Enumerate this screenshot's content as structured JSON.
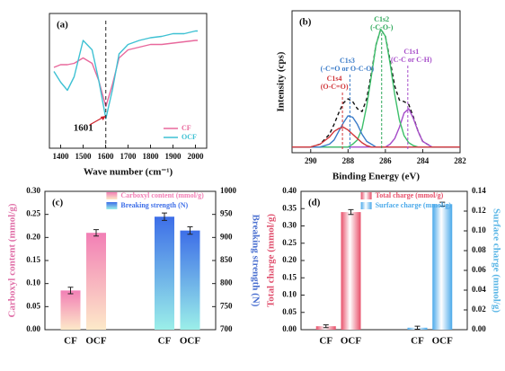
{
  "chart_data": [
    {
      "type": "line",
      "panel_label": "(a)",
      "xlabel": "Wave number (cm⁻¹)",
      "x": [
        1370,
        1400,
        1430,
        1460,
        1500,
        1540,
        1570,
        1601,
        1630,
        1660,
        1700,
        1750,
        1800,
        1850,
        1900,
        1950,
        2000,
        2010
      ],
      "xlim": [
        1350,
        2050
      ],
      "xticks": [
        1400,
        1500,
        1600,
        1700,
        1800,
        1900,
        2000
      ],
      "ylim": [
        0,
        100
      ],
      "legend": "lower right",
      "series": [
        {
          "name": "CF",
          "color": "#e8689c",
          "values": [
            60,
            62,
            62,
            63,
            67,
            63,
            50,
            31,
            47,
            67,
            73,
            75,
            77,
            77,
            78,
            79,
            80,
            80
          ]
        },
        {
          "name": "OCF",
          "color": "#3ec1d3",
          "values": [
            57,
            49,
            43,
            53,
            80,
            73,
            50,
            22,
            43,
            70,
            77,
            80,
            82,
            83,
            85,
            85,
            87,
            87
          ]
        }
      ],
      "annotations": [
        {
          "text": "1601",
          "x": 1601
        }
      ]
    },
    {
      "type": "line",
      "panel_label": "(b)",
      "xlabel": "Binding Energy (eV)",
      "ylabel": "Intensity (cps)",
      "x": [
        291,
        290.5,
        290,
        289.5,
        289,
        288.75,
        288.5,
        288.25,
        288,
        287.75,
        287.5,
        287.25,
        287,
        286.75,
        286.5,
        286.25,
        286,
        285.75,
        285.5,
        285.25,
        285,
        284.75,
        284.5,
        284.25,
        284,
        283.5,
        283,
        282.5,
        282
      ],
      "xlim": [
        291,
        282
      ],
      "xticks": [
        290,
        288,
        286,
        284,
        282
      ],
      "ylim": [
        0,
        100
      ],
      "series": [
        {
          "color": "#111111",
          "style": "dashed",
          "values": [
            4,
            4,
            4,
            6,
            13,
            20,
            28,
            35,
            38,
            36,
            31,
            29,
            38,
            56,
            76,
            87,
            82,
            65,
            47,
            37,
            36,
            34,
            25,
            15,
            8,
            4,
            4,
            4,
            4
          ]
        },
        {
          "color": "#a64cc9",
          "values": [
            4,
            4,
            4,
            4,
            4,
            4,
            4,
            4,
            4,
            4,
            4,
            4,
            4,
            4,
            4,
            4,
            4,
            6,
            10,
            18,
            28,
            31,
            24,
            15,
            8,
            4,
            4,
            4,
            4
          ]
        },
        {
          "color": "#3dbf6a",
          "values": [
            4,
            4,
            4,
            4,
            4,
            4,
            4,
            4,
            4,
            6,
            9,
            17,
            33,
            54,
            76,
            87,
            82,
            63,
            41,
            23,
            12,
            7,
            5,
            4,
            4,
            4,
            4,
            4,
            4
          ]
        },
        {
          "color": "#3a7bc8",
          "values": [
            4,
            4,
            4,
            4,
            6,
            9,
            15,
            21,
            26,
            25,
            20,
            13,
            8,
            6,
            4,
            4,
            4,
            4,
            4,
            4,
            4,
            4,
            4,
            4,
            4,
            4,
            4,
            4,
            4
          ]
        },
        {
          "color": "#d0363a",
          "values": [
            4,
            4,
            4,
            6,
            11,
            15,
            17,
            18,
            16,
            13,
            10,
            7,
            5,
            4,
            4,
            4,
            4,
            4,
            4,
            4,
            4,
            4,
            4,
            4,
            4,
            4,
            4,
            4,
            4
          ]
        }
      ],
      "annotations": [
        {
          "lines": [
            "C1s2",
            "(-C-O-)"
          ],
          "x": 286.2,
          "color": "#2ea85a"
        },
        {
          "lines": [
            "C1s1",
            "(C-C or C-H)"
          ],
          "x": 284.8,
          "color": "#a64cc9"
        },
        {
          "lines": [
            "C1s3",
            "(-C=O or O-C-O)"
          ],
          "x": 287.9,
          "color": "#3a7bc8"
        },
        {
          "lines": [
            "C1s4",
            "(O-C=O)"
          ],
          "x": 288.3,
          "color": "#d0363a"
        }
      ]
    },
    {
      "type": "bar",
      "panel_label": "(c)",
      "ylabel": "Carboxyl content (mmol/g)",
      "y2label": "Breaking strength (N)",
      "categories": [
        "CF",
        "OCF",
        "CF",
        "OCF"
      ],
      "ylim": [
        0,
        0.3
      ],
      "yticks": [
        {
          "value": 0,
          "label": "0.00"
        },
        0.05,
        {
          "value": 0.1,
          "label": "0.10"
        },
        0.15,
        {
          "value": 0.2,
          "label": "0.20"
        },
        0.25,
        {
          "value": 0.3,
          "label": "0.30"
        }
      ],
      "y2lim": [
        700,
        1000
      ],
      "y2ticks": [
        700,
        750,
        800,
        850,
        900,
        950,
        1000
      ],
      "series": [
        {
          "name": "Carboxyl content (mmol/g)",
          "color": "#f27fb5",
          "values": [
            0.085,
            0.21,
            null,
            null
          ],
          "errors": [
            0.007,
            0.007,
            null,
            null
          ]
        },
        {
          "name": "Breaking strength (N)",
          "color": "#3d6ee8",
          "axis": "y2",
          "values": [
            null,
            null,
            945,
            915
          ],
          "errors": [
            null,
            null,
            8,
            8
          ]
        }
      ]
    },
    {
      "type": "bar",
      "panel_label": "(d)",
      "ylabel": "Total charge (mmol/g)",
      "y2label": "Surface charge (mmol/g)",
      "categories": [
        "CF",
        "OCF",
        "CF",
        "OCF"
      ],
      "ylim": [
        0,
        0.4
      ],
      "yticks": [
        {
          "value": 0,
          "label": "0.00"
        },
        0.05,
        {
          "value": 0.1,
          "label": "0.10"
        },
        0.15,
        {
          "value": 0.2,
          "label": "0.20"
        },
        0.25,
        {
          "value": 0.3,
          "label": "0.30"
        },
        0.35,
        {
          "value": 0.4,
          "label": "0.40"
        }
      ],
      "y2lim": [
        0,
        0.14
      ],
      "y2ticks": [
        {
          "value": 0,
          "label": "0.00"
        },
        0.02,
        0.04,
        0.06,
        0.08,
        {
          "value": 0.1,
          "label": "0.10"
        },
        0.12,
        0.14
      ],
      "series": [
        {
          "name": "Total charge (mmol/g)",
          "color": "#e8506a",
          "values": [
            0.01,
            0.34,
            null,
            null
          ],
          "errors": [
            0.004,
            0.007,
            null,
            null
          ]
        },
        {
          "name": "Surface charge (mmol/g)",
          "color": "#4aa9ea",
          "axis": "y2",
          "values": [
            null,
            null,
            0.002,
            0.127
          ],
          "errors": [
            null,
            null,
            0.0015,
            0.002
          ]
        }
      ]
    }
  ]
}
